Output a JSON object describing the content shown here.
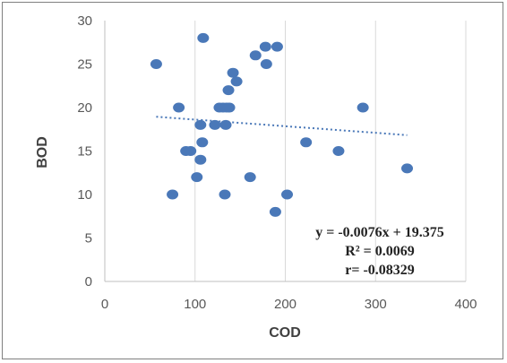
{
  "chart_data": {
    "type": "scatter",
    "title": "",
    "xlabel": "COD",
    "ylabel": "BOD",
    "xlim": [
      0,
      400
    ],
    "ylim": [
      0,
      30
    ],
    "x_ticks": [
      "0",
      "100",
      "200",
      "300",
      "400"
    ],
    "y_ticks": [
      "0",
      "5",
      "10",
      "15",
      "20",
      "25",
      "30"
    ],
    "grid": "vertical",
    "legend": "none",
    "marker_color": "#4a78b8",
    "series": [
      {
        "x": [
          57,
          109,
          178,
          191,
          167,
          179,
          142,
          146,
          137,
          82,
          127,
          131,
          135,
          138,
          286,
          106,
          122,
          134,
          108,
          223,
          90,
          95,
          259,
          335,
          106,
          75,
          102,
          133,
          161,
          202,
          189
        ],
        "y": [
          25,
          28,
          27,
          27,
          26,
          25,
          24,
          23,
          22,
          20,
          20,
          20,
          20,
          20,
          20,
          18,
          18,
          18,
          16,
          16,
          15,
          15,
          15,
          13,
          14,
          10,
          12,
          10,
          12,
          10,
          8
        ]
      }
    ],
    "trendline": {
      "style": "dotted",
      "slope": -0.0076,
      "intercept": 19.375,
      "x_range": [
        57,
        335
      ]
    },
    "annotation": {
      "lines": [
        "y = -0.0076x + 19.375",
        "R² = 0.0069",
        "r= -0.08329"
      ]
    }
  }
}
